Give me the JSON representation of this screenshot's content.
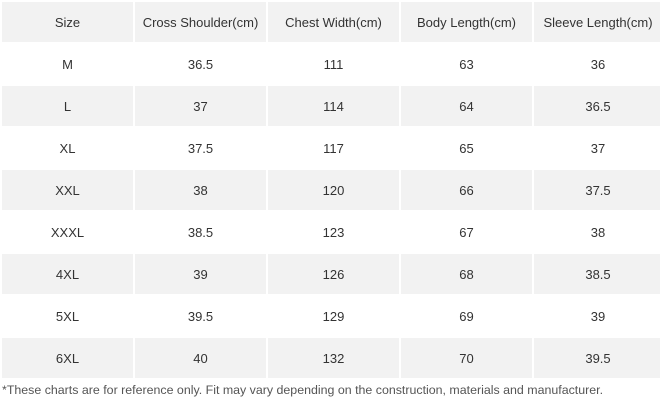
{
  "table": {
    "headers": [
      "Size",
      "Cross Shoulder(cm)",
      "Chest Width(cm)",
      "Body Length(cm)",
      "Sleeve Length(cm)"
    ],
    "rows": [
      [
        "M",
        "36.5",
        "111",
        "63",
        "36"
      ],
      [
        "L",
        "37",
        "114",
        "64",
        "36.5"
      ],
      [
        "XL",
        "37.5",
        "117",
        "65",
        "37"
      ],
      [
        "XXL",
        "38",
        "120",
        "66",
        "37.5"
      ],
      [
        "XXXL",
        "38.5",
        "123",
        "67",
        "38"
      ],
      [
        "4XL",
        "39",
        "126",
        "68",
        "38.5"
      ],
      [
        "5XL",
        "39.5",
        "129",
        "69",
        "39"
      ],
      [
        "6XL",
        "40",
        "132",
        "70",
        "39.5"
      ]
    ]
  },
  "footnote": "*These charts are for reference only. Fit may vary depending on the construction, materials and manufacturer.",
  "colors": {
    "shaded_row": "#f2f2f2",
    "text": "#333333",
    "background": "#ffffff"
  }
}
